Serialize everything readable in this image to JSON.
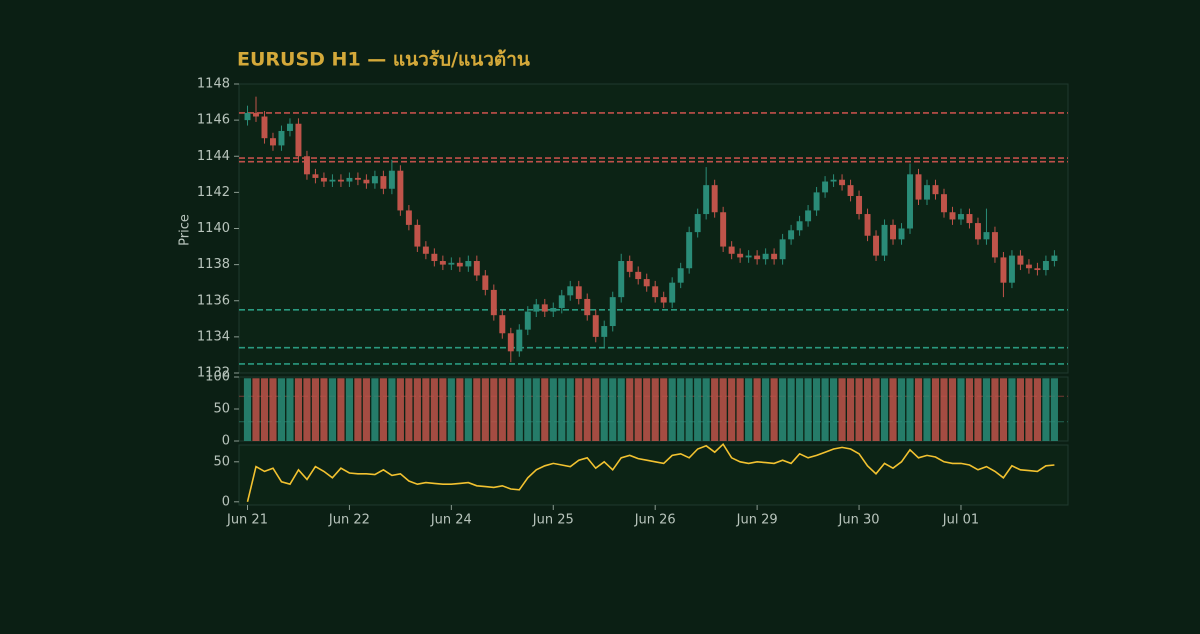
{
  "chart_data": [
    {
      "type": "candlestick",
      "title": "EURUSD H1 — แนวรับ/แนวต้าน",
      "ylabel": "Price",
      "up_color": "#2a8c78",
      "down_color": "#c0544a",
      "xlim": [
        -1,
        96.6
      ],
      "xticks": [
        {
          "value": 0,
          "label": "Jun 21"
        },
        {
          "value": 12,
          "label": "Jun 22"
        },
        {
          "value": 24,
          "label": "Jun 24"
        },
        {
          "value": 36,
          "label": "Jun 25"
        },
        {
          "value": 48,
          "label": "Jun 26"
        },
        {
          "value": 60,
          "label": "Jun 29"
        },
        {
          "value": 72,
          "label": "Jun 30"
        },
        {
          "value": 84,
          "label": "Jul 01"
        }
      ],
      "ylim": [
        1132,
        1148
      ],
      "yticks": [
        1132,
        1134,
        1136,
        1138,
        1140,
        1142,
        1144,
        1146,
        1148
      ],
      "levels": [
        {
          "value": 1146.4,
          "color": "#c0504a"
        },
        {
          "value": 1143.9,
          "color": "#c0504a"
        },
        {
          "value": 1143.7,
          "color": "#c0504a"
        },
        {
          "value": 1135.5,
          "color": "#2a9a80"
        },
        {
          "value": 1133.4,
          "color": "#2a9a80"
        },
        {
          "value": 1132.5,
          "color": "#2a9a80"
        }
      ],
      "open": [
        1146.0,
        1146.4,
        1146.2,
        1145.0,
        1144.6,
        1145.4,
        1145.8,
        1144.0,
        1143.0,
        1142.8,
        1142.6,
        1142.7,
        1142.6,
        1142.8,
        1142.7,
        1142.5,
        1142.9,
        1142.2,
        1143.2,
        1141.0,
        1140.2,
        1139.0,
        1138.6,
        1138.2,
        1138.0,
        1138.1,
        1137.9,
        1138.2,
        1137.4,
        1136.6,
        1135.2,
        1134.2,
        1133.2,
        1134.4,
        1135.4,
        1135.8,
        1135.4,
        1135.6,
        1136.3,
        1136.8,
        1136.1,
        1135.2,
        1134.0,
        1134.6,
        1136.2,
        1138.2,
        1137.6,
        1137.2,
        1136.8,
        1136.2,
        1135.9,
        1137.0,
        1137.8,
        1139.8,
        1140.8,
        1142.4,
        1140.9,
        1139.0,
        1138.6,
        1138.4,
        1138.5,
        1138.3,
        1138.6,
        1138.3,
        1139.4,
        1139.9,
        1140.4,
        1141.0,
        1142.0,
        1142.6,
        1142.7,
        1142.4,
        1141.8,
        1140.8,
        1139.6,
        1138.5,
        1140.2,
        1139.4,
        1140.0,
        1143.0,
        1141.6,
        1142.4,
        1141.9,
        1140.9,
        1140.5,
        1140.8,
        1140.3,
        1139.4,
        1139.8,
        1138.4,
        1137.0,
        1138.5,
        1138.0,
        1137.8,
        1137.7,
        1138.2
      ],
      "high": [
        1146.8,
        1147.3,
        1146.5,
        1145.3,
        1145.7,
        1146.1,
        1146.1,
        1144.3,
        1143.3,
        1143.1,
        1143.0,
        1143.0,
        1143.1,
        1143.1,
        1143.0,
        1143.2,
        1143.2,
        1143.8,
        1143.5,
        1141.3,
        1140.5,
        1139.3,
        1138.9,
        1138.5,
        1138.4,
        1138.4,
        1138.5,
        1138.5,
        1137.7,
        1136.9,
        1135.5,
        1134.5,
        1134.7,
        1135.7,
        1136.1,
        1136.1,
        1135.9,
        1136.6,
        1137.1,
        1137.1,
        1136.4,
        1135.5,
        1134.9,
        1136.5,
        1138.6,
        1138.5,
        1137.9,
        1137.5,
        1137.1,
        1136.5,
        1137.3,
        1138.1,
        1140.1,
        1141.1,
        1143.4,
        1142.7,
        1141.2,
        1139.3,
        1138.9,
        1138.8,
        1138.8,
        1138.9,
        1138.9,
        1139.7,
        1140.2,
        1140.7,
        1141.3,
        1142.3,
        1142.9,
        1143.0,
        1143.0,
        1142.7,
        1142.1,
        1141.1,
        1139.9,
        1140.5,
        1140.5,
        1140.3,
        1143.6,
        1143.3,
        1142.7,
        1142.7,
        1142.2,
        1141.2,
        1141.1,
        1141.1,
        1140.6,
        1141.1,
        1140.1,
        1138.7,
        1138.8,
        1138.8,
        1138.3,
        1138.1,
        1138.5,
        1138.8
      ],
      "low": [
        1145.7,
        1145.9,
        1144.7,
        1144.3,
        1144.3,
        1145.1,
        1143.7,
        1142.7,
        1142.5,
        1142.3,
        1142.3,
        1142.3,
        1142.3,
        1142.4,
        1142.2,
        1142.2,
        1141.9,
        1141.9,
        1140.7,
        1139.9,
        1138.7,
        1138.3,
        1137.9,
        1137.7,
        1137.7,
        1137.6,
        1137.6,
        1137.1,
        1136.3,
        1134.9,
        1133.9,
        1132.6,
        1132.9,
        1134.1,
        1135.1,
        1135.1,
        1135.1,
        1135.3,
        1136.0,
        1135.8,
        1134.9,
        1133.7,
        1133.4,
        1134.3,
        1135.9,
        1137.3,
        1136.9,
        1136.5,
        1135.9,
        1135.6,
        1135.6,
        1136.7,
        1137.5,
        1139.5,
        1140.5,
        1140.6,
        1138.7,
        1138.3,
        1138.1,
        1138.1,
        1138.0,
        1138.0,
        1138.0,
        1138.0,
        1139.1,
        1139.6,
        1140.1,
        1140.7,
        1141.7,
        1142.3,
        1142.1,
        1141.5,
        1140.5,
        1139.3,
        1138.2,
        1138.2,
        1139.1,
        1139.1,
        1139.7,
        1141.3,
        1141.3,
        1141.6,
        1140.6,
        1140.2,
        1140.2,
        1140.0,
        1139.1,
        1139.1,
        1138.1,
        1136.2,
        1136.7,
        1137.7,
        1137.5,
        1137.4,
        1137.4,
        1137.9
      ],
      "close": [
        1146.4,
        1146.2,
        1145.0,
        1144.6,
        1145.4,
        1145.8,
        1144.0,
        1143.0,
        1142.8,
        1142.6,
        1142.7,
        1142.6,
        1142.8,
        1142.7,
        1142.5,
        1142.9,
        1142.2,
        1143.2,
        1141.0,
        1140.2,
        1139.0,
        1138.6,
        1138.2,
        1138.0,
        1138.1,
        1137.9,
        1138.2,
        1137.4,
        1136.6,
        1135.2,
        1134.2,
        1133.2,
        1134.4,
        1135.4,
        1135.8,
        1135.4,
        1135.6,
        1136.3,
        1136.8,
        1136.1,
        1135.2,
        1134.0,
        1134.6,
        1136.2,
        1138.2,
        1137.6,
        1137.2,
        1136.8,
        1136.2,
        1135.9,
        1137.0,
        1137.8,
        1139.8,
        1140.8,
        1142.4,
        1140.9,
        1139.0,
        1138.6,
        1138.4,
        1138.5,
        1138.3,
        1138.6,
        1138.3,
        1139.4,
        1139.9,
        1140.4,
        1141.0,
        1142.0,
        1142.6,
        1142.7,
        1142.4,
        1141.8,
        1140.8,
        1139.6,
        1138.5,
        1140.2,
        1139.4,
        1140.0,
        1143.0,
        1141.6,
        1142.4,
        1141.9,
        1140.9,
        1140.5,
        1140.8,
        1140.3,
        1139.4,
        1139.8,
        1138.4,
        1137.0,
        1138.5,
        1138.0,
        1137.8,
        1137.7,
        1138.2,
        1138.5
      ]
    },
    {
      "type": "bar",
      "ylim": [
        0,
        100
      ],
      "yticks": [
        0,
        50,
        100
      ],
      "levels": [
        {
          "value": 70,
          "color": "#a04440"
        },
        {
          "value": 30,
          "color": "#2a8070"
        }
      ],
      "values": [
        98,
        98,
        98,
        98,
        98,
        98,
        98,
        98,
        98,
        98,
        98,
        98,
        98,
        98,
        98,
        98,
        98,
        98,
        98,
        98,
        98,
        98,
        98,
        98,
        98,
        98,
        98,
        98,
        98,
        98,
        98,
        98,
        98,
        98,
        98,
        98,
        98,
        98,
        98,
        98,
        98,
        98,
        98,
        98,
        98,
        98,
        98,
        98,
        98,
        98,
        98,
        98,
        98,
        98,
        98,
        98,
        98,
        98,
        98,
        98,
        98,
        98,
        98,
        98,
        98,
        98,
        98,
        98,
        98,
        98,
        98,
        98,
        98,
        98,
        98,
        98,
        98,
        98,
        98,
        98,
        98,
        98,
        98,
        98,
        98,
        98,
        98,
        98,
        98,
        98,
        98,
        98,
        98,
        98,
        98,
        98
      ]
    },
    {
      "type": "line",
      "color": "#f2c230",
      "ylim": [
        -4,
        71
      ],
      "yticks": [
        0,
        50
      ],
      "values": [
        0,
        44,
        38,
        42,
        25,
        22,
        40,
        28,
        44,
        38,
        30,
        42,
        36,
        35,
        35,
        34,
        40,
        33,
        35,
        26,
        22,
        24,
        23,
        22,
        22,
        23,
        24,
        20,
        19,
        18,
        20,
        16,
        15,
        30,
        40,
        45,
        48,
        46,
        44,
        52,
        55,
        42,
        50,
        40,
        55,
        58,
        54,
        52,
        50,
        48,
        58,
        60,
        55,
        66,
        70,
        62,
        72,
        55,
        50,
        48,
        50,
        49,
        48,
        52,
        48,
        60,
        55,
        58,
        62,
        66,
        68,
        66,
        60,
        45,
        35,
        48,
        42,
        50,
        65,
        55,
        58,
        56,
        50,
        48,
        48,
        46,
        40,
        44,
        38,
        30,
        45,
        40,
        39,
        38,
        45,
        46
      ]
    }
  ]
}
